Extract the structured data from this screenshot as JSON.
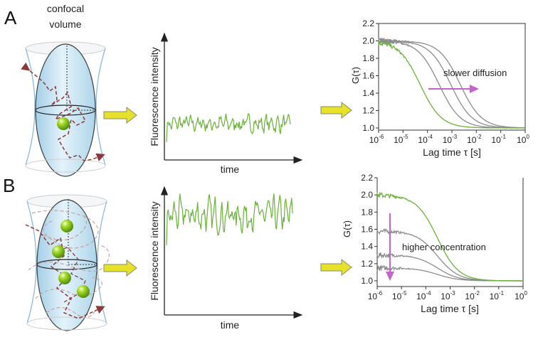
{
  "panels": [
    {
      "label": "A",
      "volume_title_line1": "confocal",
      "volume_title_line2": "volume",
      "particle_count": 1,
      "trace": {
        "ylabel": "Fluorescence intensity",
        "xlabel": "time",
        "mean_level": 0.3,
        "amplitude": 0.09
      },
      "chart_data": {
        "type": "line",
        "title": "",
        "xlabel": "Lag time τ [s]",
        "ylabel": "G(τ)",
        "xscale": "log",
        "xlim": [
          1e-06,
          1
        ],
        "ylim": [
          0.97,
          2.2
        ],
        "x_ticks": [
          {
            "base": "10",
            "exp": "-6"
          },
          {
            "base": "10",
            "exp": "-5"
          },
          {
            "base": "10",
            "exp": "-4"
          },
          {
            "base": "10",
            "exp": "-3"
          },
          {
            "base": "10",
            "exp": "-2"
          },
          {
            "base": "10",
            "exp": "-1"
          },
          {
            "base": "10",
            "exp": "0"
          }
        ],
        "y_ticks": [
          "1.0",
          "1.2",
          "1.4",
          "1.6",
          "1.8",
          "2.0",
          "2.2"
        ],
        "annotation": "slower diffusion",
        "annotation_arrow": "right",
        "series": [
          {
            "name": "green",
            "color": "#6ab23a",
            "G0": 2.0,
            "tau_d": 5e-05
          },
          {
            "name": "gray-1",
            "color": "#8c8c8c",
            "G0": 2.0,
            "tau_d": 0.0003
          },
          {
            "name": "gray-2",
            "color": "#8c8c8c",
            "G0": 2.0,
            "tau_d": 0.0009
          },
          {
            "name": "gray-3",
            "color": "#8c8c8c",
            "G0": 2.0,
            "tau_d": 0.0022
          }
        ]
      }
    },
    {
      "label": "B",
      "particle_count": 4,
      "trace": {
        "ylabel": "Fluorescence intensity",
        "xlabel": "time",
        "mean_level": 0.78,
        "amplitude": 0.16
      },
      "chart_data": {
        "type": "line",
        "title": "",
        "xlabel": "Lag time τ [s]",
        "ylabel": "G(τ)",
        "xscale": "log",
        "xlim": [
          1e-06,
          1
        ],
        "ylim": [
          0.97,
          2.2
        ],
        "x_ticks": [
          {
            "base": "10",
            "exp": "-6"
          },
          {
            "base": "10",
            "exp": "-5"
          },
          {
            "base": "10",
            "exp": "-4"
          },
          {
            "base": "10",
            "exp": "-3"
          },
          {
            "base": "10",
            "exp": "-2"
          },
          {
            "base": "10",
            "exp": "-1"
          },
          {
            "base": "10",
            "exp": "0"
          }
        ],
        "y_ticks": [
          "1.0",
          "1.2",
          "1.4",
          "1.6",
          "1.8",
          "2.0",
          "2.2"
        ],
        "annotation": "higher concentration",
        "annotation_arrow": "down",
        "series": [
          {
            "name": "green",
            "color": "#6ab23a",
            "G0": 2.0,
            "tau_d": 0.0003
          },
          {
            "name": "gray-1",
            "color": "#8c8c8c",
            "G0": 1.58,
            "tau_d": 0.0003
          },
          {
            "name": "gray-2",
            "color": "#8c8c8c",
            "G0": 1.3,
            "tau_d": 0.0003
          },
          {
            "name": "gray-3",
            "color": "#8c8c8c",
            "G0": 1.15,
            "tau_d": 0.0003
          }
        ]
      }
    }
  ],
  "colors": {
    "arrow_fill": "#e6e22a",
    "arrow_stroke": "#8a8a6a",
    "annotation_arrow": "#c165c9",
    "trace": "#6ab23a",
    "volume": "#bcdff0",
    "path": "#8b3a3a"
  }
}
